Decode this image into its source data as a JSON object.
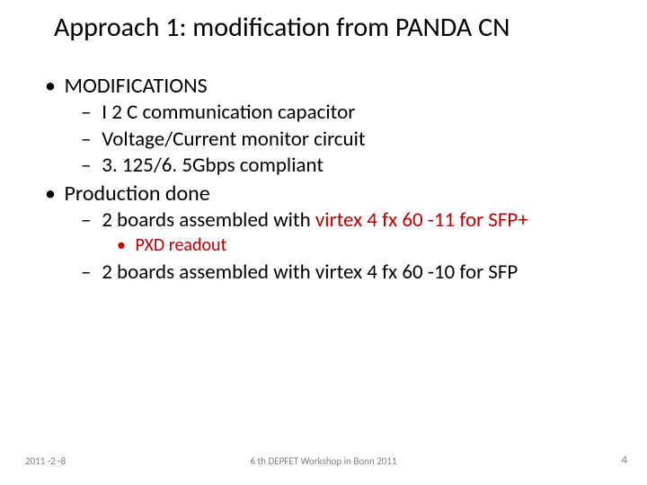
{
  "title": "Approach 1: modification from PANDA CN",
  "items": [
    {
      "level": 1,
      "color": "black",
      "bullet": "•",
      "text": "MODIFICATIONS"
    },
    {
      "level": 2,
      "color": "black",
      "bullet": "–",
      "text": "I 2 C communication capacitor"
    },
    {
      "level": 2,
      "color": "black",
      "bullet": "–",
      "text": "Voltage/Current monitor circuit"
    },
    {
      "level": 2,
      "color": "black",
      "bullet": "–",
      "text": "3. 125/6. 5Gbps compliant"
    },
    {
      "level": 1,
      "color": "black",
      "bullet": "•",
      "text": "Production done"
    },
    {
      "level": 2,
      "color": "black",
      "bullet": "–",
      "mixed": [
        {
          "text": "2 boards assembled with ",
          "color": "black"
        },
        {
          "text": "virtex 4 fx 60 -11 for SFP+",
          "color": "red"
        }
      ]
    },
    {
      "level": 3,
      "color": "red",
      "bullet": "•",
      "text": "PXD readout"
    },
    {
      "level": 2,
      "color": "black",
      "bullet": "–",
      "text": "2 boards assembled with virtex 4 fx 60 -10 for SFP"
    }
  ],
  "footer": {
    "date": "2011 -2 -8",
    "center": "6 th DEPFET Workshop in Bonn 2011",
    "page": "4"
  },
  "colors": {
    "black": "#000000",
    "red": "#c00000",
    "grey": "#7f7f7f",
    "background": "#ffffff"
  },
  "fonts": {
    "title_size_pt": 30,
    "l1_size_pt": 24,
    "l2_size_pt": 23,
    "l3_size_pt": 20,
    "footer_size_pt": 11
  }
}
